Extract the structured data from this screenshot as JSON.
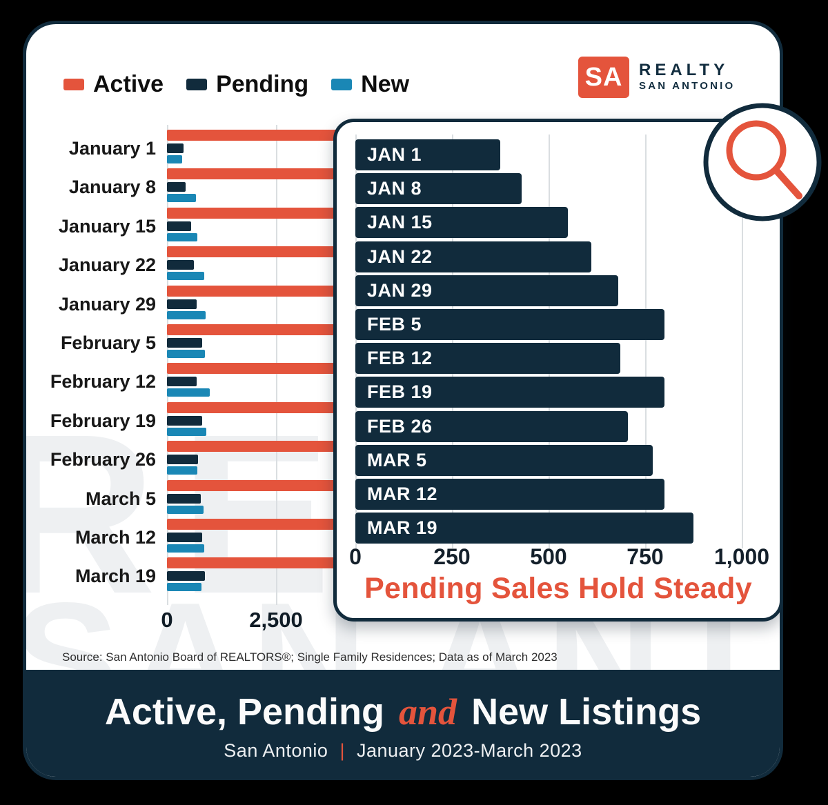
{
  "colors": {
    "accent_red": "#E4543C",
    "navy": "#112B3C",
    "blue": "#1A87B5",
    "gridline": "#DADEE1",
    "watermark": "#EEF0F2"
  },
  "legend": {
    "items": [
      {
        "label": "Active",
        "color": "#E4543C"
      },
      {
        "label": "Pending",
        "color": "#112B3C"
      },
      {
        "label": "New",
        "color": "#1A87B5"
      }
    ]
  },
  "logo": {
    "badge": "SA",
    "line1": "REALTY",
    "line2": "SAN ANTONIO",
    "badge_color": "#E4543C"
  },
  "watermark": {
    "line1": "REALTY",
    "line2": "SAN ANTONIO"
  },
  "chart_data": [
    {
      "id": "main-weekly-listings",
      "type": "bar",
      "orientation": "horizontal",
      "title": "",
      "categories": [
        "January 1",
        "January 8",
        "January 15",
        "January 22",
        "January 29",
        "February 5",
        "February 12",
        "February 19",
        "February 26",
        "March 5",
        "March 12",
        "March 19"
      ],
      "series": [
        {
          "name": "Active",
          "color": "#E4543C",
          "values": null,
          "note": "Active bars run past the visible plot area; their right ends are hidden behind the inset overlay"
        },
        {
          "name": "Pending",
          "color": "#112B3C",
          "values": [
            375,
            430,
            550,
            610,
            680,
            800,
            685,
            800,
            705,
            770,
            800,
            875
          ]
        },
        {
          "name": "New",
          "color": "#1A87B5",
          "values": [
            350,
            665,
            695,
            855,
            885,
            870,
            975,
            900,
            695,
            840,
            855,
            785
          ]
        }
      ],
      "x_ticks_visible": [
        "0",
        "2,500"
      ],
      "x_gridlines": [
        0,
        2500
      ],
      "xlim_visible": [
        0,
        3800
      ],
      "grid": true,
      "legend_position": "top-left"
    },
    {
      "id": "inset-pending-zoom",
      "type": "bar",
      "orientation": "horizontal",
      "title": "Pending Sales Hold Steady",
      "title_color": "#E4543C",
      "categories": [
        "JAN 1",
        "JAN 8",
        "JAN 15",
        "JAN 22",
        "JAN 29",
        "FEB 5",
        "FEB 12",
        "FEB 19",
        "FEB 26",
        "MAR 5",
        "MAR 12",
        "MAR 19"
      ],
      "values": [
        375,
        430,
        550,
        610,
        680,
        800,
        685,
        800,
        705,
        770,
        800,
        875
      ],
      "bar_color": "#112B3C",
      "x_ticks": [
        "0",
        "250",
        "500",
        "750",
        "1,000"
      ],
      "x_tick_values": [
        0,
        250,
        500,
        750,
        1000
      ],
      "xlim": [
        0,
        1000
      ],
      "grid": true
    }
  ],
  "source_note": "Source: San Antonio Board of REALTORS®; Single Family Residences; Data as of March 2023",
  "footer": {
    "title_part1": "Active, Pending",
    "title_and": "and",
    "title_part2": "New Listings",
    "subtitle_left": "San Antonio",
    "subtitle_sep": "|",
    "subtitle_right": "January 2023-March 2023"
  }
}
